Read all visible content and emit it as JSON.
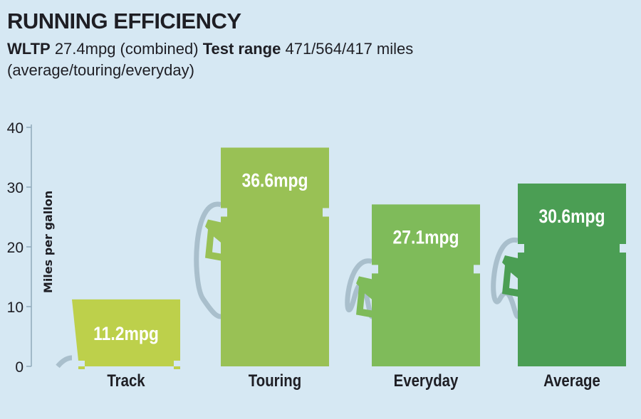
{
  "header": {
    "title": "RUNNING EFFICIENCY",
    "wltp_label": "WLTP",
    "wltp_value": "27.4mpg (combined)",
    "range_label": "Test range",
    "range_value": "471/564/417 miles",
    "range_note": "(average/touring/everyday)"
  },
  "chart_data": {
    "type": "bar",
    "title": "RUNNING EFFICIENCY",
    "xlabel": "",
    "ylabel": "Miles per gallon",
    "ylim": [
      0,
      40
    ],
    "yticks": [
      "0",
      "10",
      "20",
      "30",
      "40"
    ],
    "categories": [
      "Track",
      "Touring",
      "Everyday",
      "Average"
    ],
    "values": [
      11.2,
      36.6,
      27.1,
      30.6
    ],
    "data_labels": [
      "11.2mpg",
      "36.6mpg",
      "27.1mpg",
      "30.6mpg"
    ],
    "colors": [
      "#bdd04b",
      "#99c155",
      "#7fbb5a",
      "#4b9e54"
    ],
    "grid": false
  }
}
